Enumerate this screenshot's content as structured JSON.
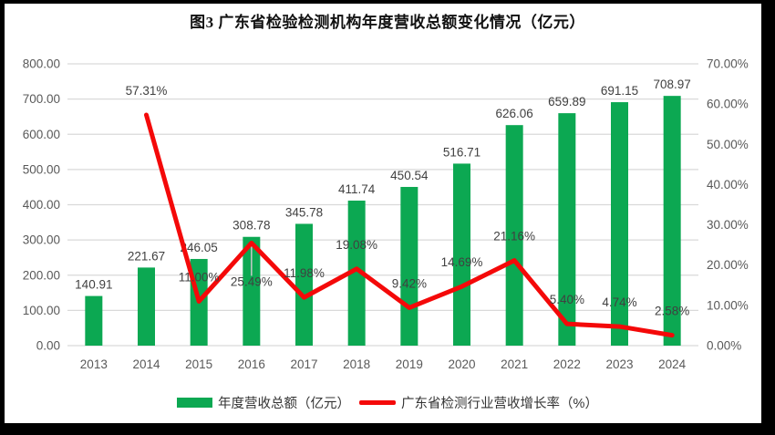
{
  "title": "图3 广东省检验检测机构年度营收总额变化情况（亿元）",
  "colors": {
    "bar_green": "#0ca852",
    "line_red": "#f40909",
    "gridline": "#d9d9d9",
    "leader_line": "#c9c9c9",
    "frame_black": "#000000",
    "panel_white": "#ffffff"
  },
  "legend": {
    "items": [
      {
        "swatch": "bar-swatch",
        "label": "年度营收总额（亿元）",
        "color": "#0ca852"
      },
      {
        "swatch": "line-swatch",
        "label": "广东省检测行业营收增长率（%）",
        "color": "#f40909"
      }
    ]
  },
  "chart_data": {
    "type": "bar+line combo",
    "title": "图3 广东省检验检测机构年度营收总额变化情况（亿元）",
    "categories": [
      "2013",
      "2014",
      "2015",
      "2016",
      "2017",
      "2018",
      "2019",
      "2020",
      "2021",
      "2022",
      "2023",
      "2024"
    ],
    "series": [
      {
        "name": "年度营收总额（亿元）",
        "type": "bar",
        "axis": "left",
        "color": "#0ca852",
        "values": [
          140.91,
          221.67,
          246.05,
          308.78,
          345.78,
          411.74,
          450.54,
          516.71,
          626.06,
          659.89,
          691.15,
          708.97
        ],
        "labels": [
          "140.91",
          "221.67",
          "246.05",
          "308.78",
          "345.78",
          "411.74",
          "450.54",
          "516.71",
          "626.06",
          "659.89",
          "691.15",
          "708.97"
        ]
      },
      {
        "name": "广东省检测行业营收增长率（%）",
        "type": "line",
        "axis": "right",
        "color": "#f40909",
        "values": [
          null,
          57.31,
          11.0,
          25.49,
          11.98,
          19.08,
          9.42,
          14.69,
          21.16,
          5.4,
          4.74,
          2.58
        ],
        "labels": [
          null,
          "57.31%",
          "11.00%",
          "25.49%",
          "11.98%",
          "19.08%",
          "9.42%",
          "14.69%",
          "21.16%",
          "5.40%",
          "4.74%",
          "2.58%"
        ]
      }
    ],
    "left_axis": {
      "min": 0,
      "max": 800,
      "step": 100,
      "tick_labels": [
        "0.00",
        "100.00",
        "200.00",
        "300.00",
        "400.00",
        "500.00",
        "600.00",
        "700.00",
        "800.00"
      ]
    },
    "right_axis": {
      "min": 0,
      "max": 70,
      "step": 10,
      "tick_labels": [
        "0.00%",
        "10.00%",
        "20.00%",
        "30.00%",
        "40.00%",
        "50.00%",
        "60.00%",
        "70.00%"
      ]
    },
    "grid": true,
    "legend_position": "bottom",
    "label_below_categories": [
      "2016"
    ]
  }
}
